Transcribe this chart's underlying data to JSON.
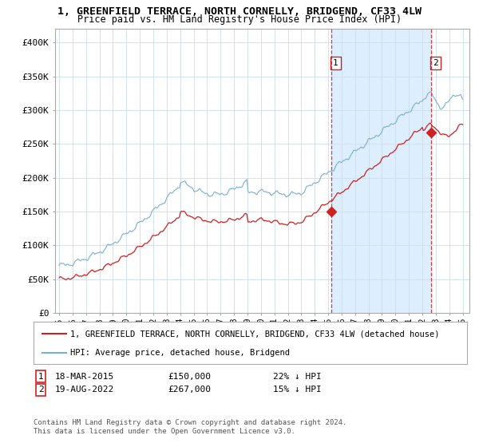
{
  "title1": "1, GREENFIELD TERRACE, NORTH CORNELLY, BRIDGEND, CF33 4LW",
  "title2": "Price paid vs. HM Land Registry's House Price Index (HPI)",
  "ylim": [
    0,
    420000
  ],
  "yticks": [
    0,
    50000,
    100000,
    150000,
    200000,
    250000,
    300000,
    350000,
    400000
  ],
  "ytick_labels": [
    "£0",
    "£50K",
    "£100K",
    "£150K",
    "£200K",
    "£250K",
    "£300K",
    "£350K",
    "£400K"
  ],
  "sale1_price": 150000,
  "sale1_label": "1",
  "sale1_date_str": "18-MAR-2015",
  "sale1_price_str": "£150,000",
  "sale1_pct": "22% ↓ HPI",
  "sale1_year": 2015.21,
  "sale2_price": 267000,
  "sale2_label": "2",
  "sale2_date_str": "19-AUG-2022",
  "sale2_price_str": "£267,000",
  "sale2_pct": "15% ↓ HPI",
  "sale2_year": 2022.63,
  "hpi_color": "#7aadd4",
  "price_color": "#cc2222",
  "marker_color": "#cc2222",
  "vline_color": "#cc2222",
  "shade_color": "#ddeeff",
  "legend_label1": "1, GREENFIELD TERRACE, NORTH CORNELLY, BRIDGEND, CF33 4LW (detached house)",
  "legend_label2": "HPI: Average price, detached house, Bridgend",
  "footnote": "Contains HM Land Registry data © Crown copyright and database right 2024.\nThis data is licensed under the Open Government Licence v3.0.",
  "background_color": "#ffffff",
  "grid_color": "#ccddee",
  "xlim_left": 1994.7,
  "xlim_right": 2025.5
}
